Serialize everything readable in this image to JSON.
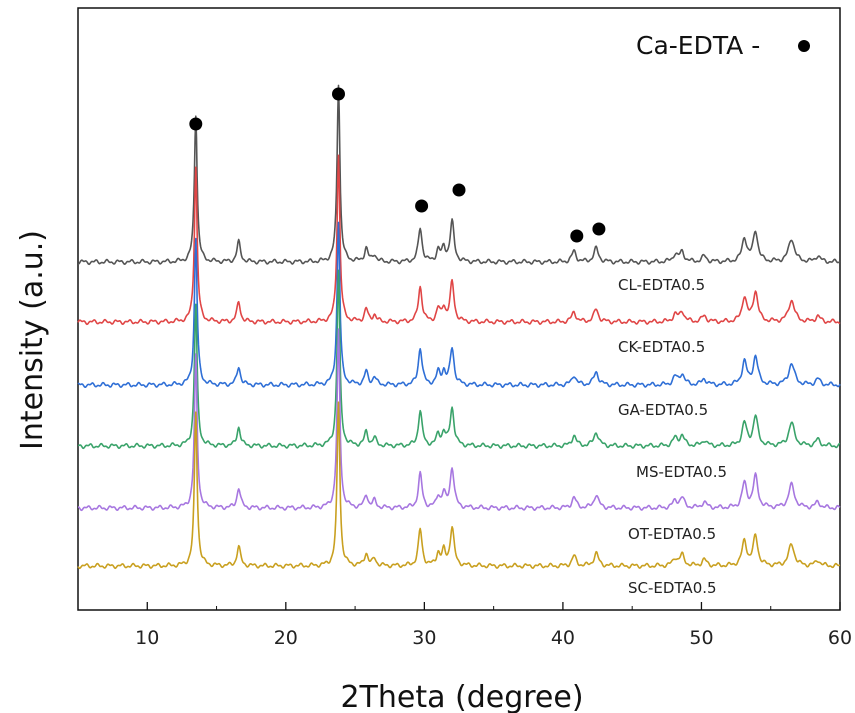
{
  "chart_data": {
    "type": "line",
    "xlabel": "2Theta (degree)",
    "ylabel": "Intensity (a.u.)",
    "xlim": [
      5,
      60
    ],
    "xticks": [
      10,
      20,
      30,
      40,
      50,
      60
    ],
    "yticks_shown": false,
    "legend": {
      "label": "Ca-EDTA -",
      "marker": "filled-circle",
      "placement": "top-right"
    },
    "marker_positions": [
      13.5,
      23.8,
      29.8,
      32.5,
      41.0,
      42.6
    ],
    "peaks": [
      {
        "x": 13.5,
        "h": 1.0,
        "w": 0.12
      },
      {
        "x": 16.6,
        "h": 0.13,
        "w": 0.15
      },
      {
        "x": 23.8,
        "h": 1.15,
        "w": 0.12
      },
      {
        "x": 25.8,
        "h": 0.09,
        "w": 0.15
      },
      {
        "x": 26.4,
        "h": 0.05,
        "w": 0.15
      },
      {
        "x": 29.7,
        "h": 0.24,
        "w": 0.16
      },
      {
        "x": 31.0,
        "h": 0.08,
        "w": 0.15
      },
      {
        "x": 31.4,
        "h": 0.09,
        "w": 0.15
      },
      {
        "x": 32.0,
        "h": 0.26,
        "w": 0.17
      },
      {
        "x": 40.8,
        "h": 0.07,
        "w": 0.18
      },
      {
        "x": 42.4,
        "h": 0.09,
        "w": 0.2
      },
      {
        "x": 48.1,
        "h": 0.05,
        "w": 0.2
      },
      {
        "x": 48.6,
        "h": 0.07,
        "w": 0.2
      },
      {
        "x": 50.2,
        "h": 0.04,
        "w": 0.2
      },
      {
        "x": 53.1,
        "h": 0.16,
        "w": 0.2
      },
      {
        "x": 53.9,
        "h": 0.2,
        "w": 0.2
      },
      {
        "x": 56.5,
        "h": 0.15,
        "w": 0.25
      },
      {
        "x": 58.4,
        "h": 0.04,
        "w": 0.2
      }
    ],
    "series": [
      {
        "name": "",
        "color": "#555555",
        "label": ""
      },
      {
        "name": "CL-EDTA0.5",
        "color": "#e04646",
        "label": "CL-EDTA0.5"
      },
      {
        "name": "CK-EDTA0.5",
        "color": "#2f6fd6",
        "label": "CK-EDTA0.5"
      },
      {
        "name": "GA-EDTA0.5",
        "color": "#3aa36a",
        "label": "GA-EDTA0.5"
      },
      {
        "name": "MS-EDTA0.5",
        "color": "#a777e0",
        "label": "MS-EDTA0.5"
      },
      {
        "name": "OT-EDTA0.5",
        "color": "#c9a020",
        "label": "OT-EDTA0.5"
      }
    ],
    "extra_label": "SC-EDTA0.5"
  }
}
